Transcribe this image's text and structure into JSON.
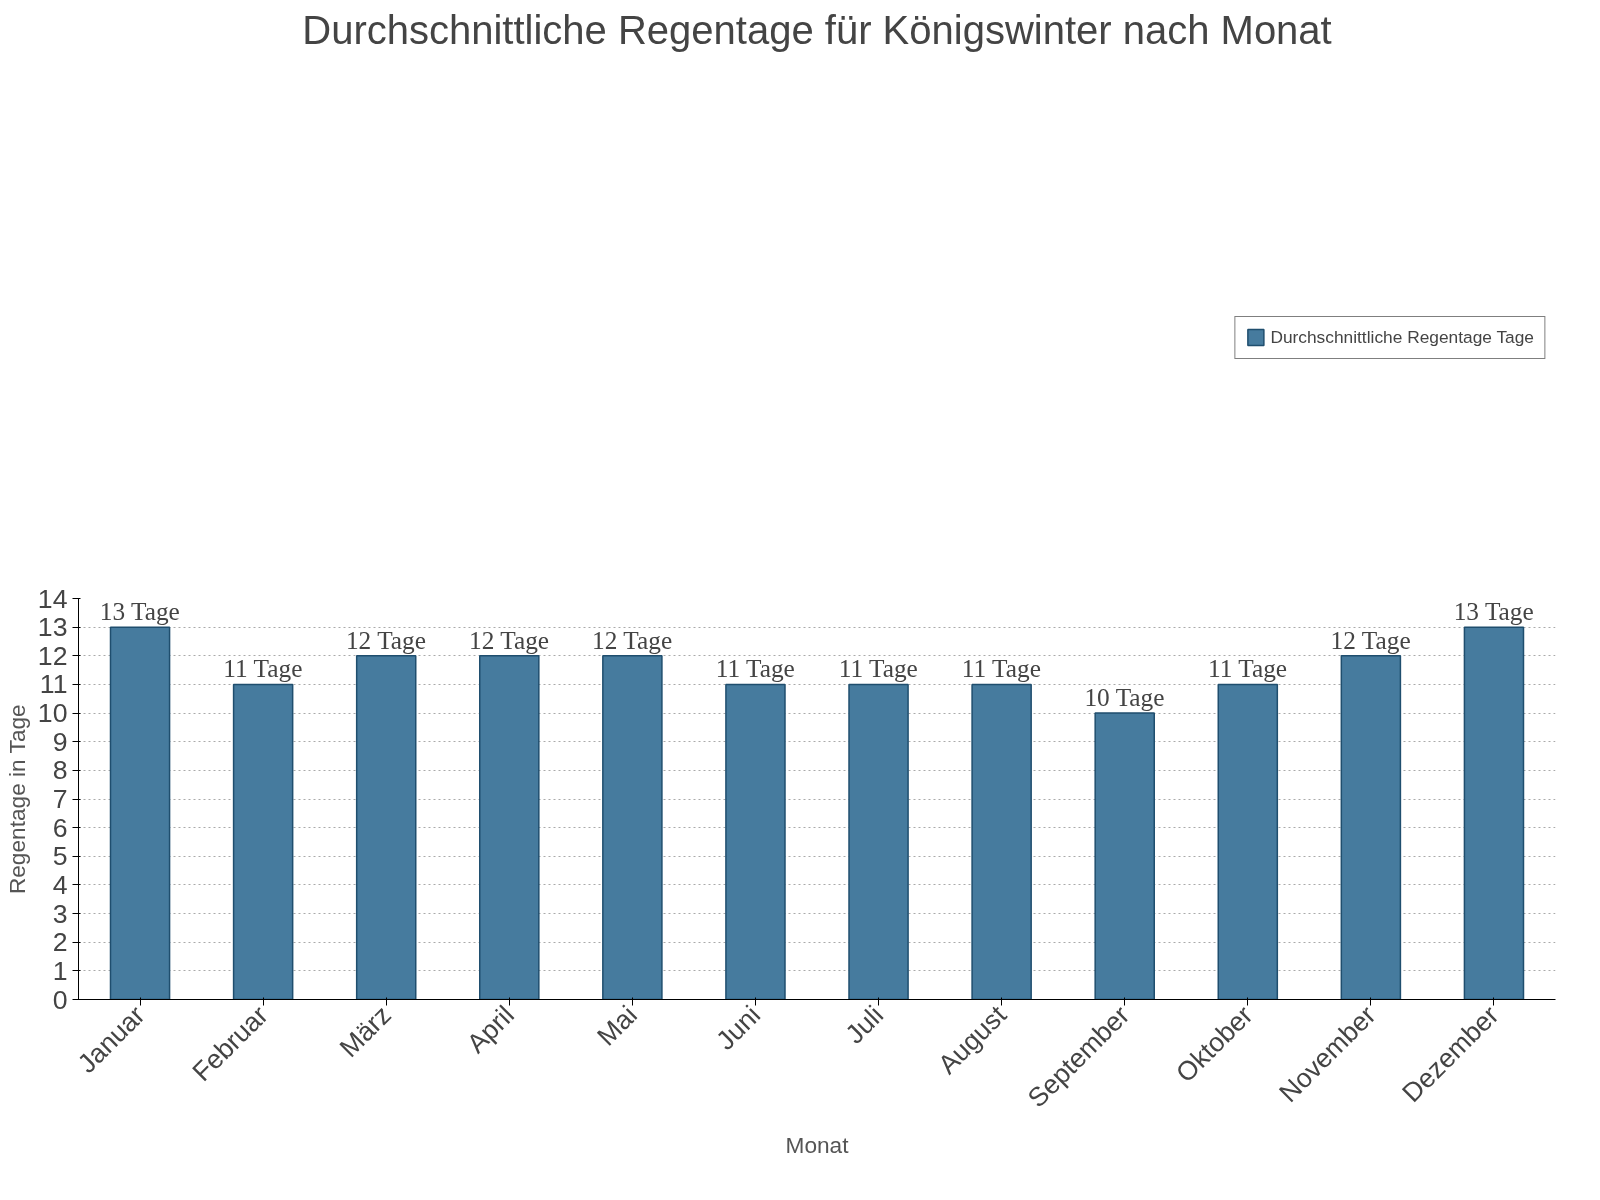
{
  "chart_data": {
    "type": "bar",
    "title": "Durchschnittliche Regentage für Königswinter nach Monat",
    "xlabel": "Monat",
    "ylabel": "Regentage in Tage",
    "categories": [
      "Januar",
      "Februar",
      "März",
      "April",
      "Mai",
      "Juni",
      "Juli",
      "August",
      "September",
      "Oktober",
      "November",
      "Dezember"
    ],
    "series": [
      {
        "name": "Durchschnittliche Regentage Tage",
        "color": "#467b9e",
        "values": [
          13,
          11,
          12,
          12,
          12,
          11,
          11,
          11,
          10,
          11,
          12,
          13
        ],
        "value_labels": [
          "13 Tage",
          "11 Tage",
          "12 Tage",
          "12 Tage",
          "12 Tage",
          "11 Tage",
          "11 Tage",
          "11 Tage",
          "10 Tage",
          "11 Tage",
          "12 Tage",
          "13 Tage"
        ]
      }
    ],
    "ylim": [
      0,
      14
    ],
    "yticks": [
      0,
      1,
      2,
      3,
      4,
      5,
      6,
      7,
      8,
      9,
      10,
      11,
      12,
      13,
      14
    ],
    "grid": "y",
    "legend": "top right"
  }
}
